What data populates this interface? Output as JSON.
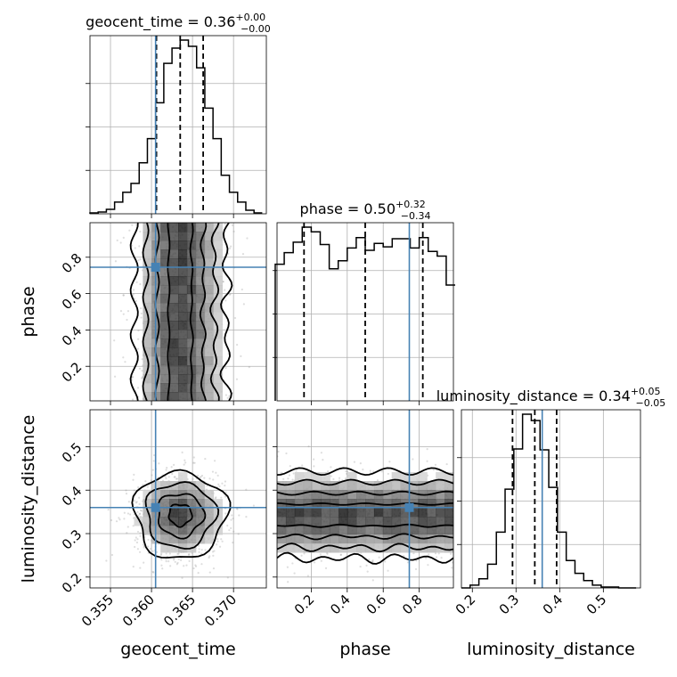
{
  "chart_data": {
    "type": "corner",
    "parameters": [
      "geocent_time",
      "phase",
      "luminosity_distance"
    ],
    "ranges": {
      "geocent_time": [
        0.3525,
        0.374
      ],
      "phase": [
        0.01,
        0.99
      ],
      "luminosity_distance": [
        0.175,
        0.585
      ]
    },
    "truths": {
      "geocent_time": 0.3605,
      "phase": 0.745,
      "luminosity_distance": 0.36
    },
    "grid": true,
    "titles": {
      "geocent_time": {
        "label": "geocent_time = ",
        "median": "0.36",
        "plus": "+0.00",
        "minus": "−0.00"
      },
      "phase": {
        "label": "phase = ",
        "median": "0.50",
        "plus": "+0.32",
        "minus": "−0.34"
      },
      "luminosity_distance": {
        "label": "luminosity_distance = ",
        "median": "0.34",
        "plus": "+0.05",
        "minus": "−0.05"
      }
    },
    "ticks": {
      "geocent_time": [
        "0.355",
        "0.360",
        "0.365",
        "0.370"
      ],
      "phase": [
        "0.2",
        "0.4",
        "0.6",
        "0.8"
      ],
      "luminosity_distance": [
        "0.2",
        "0.3",
        "0.4",
        "0.5"
      ]
    },
    "marginals": [
      {
        "parameter": "geocent_time",
        "quantiles": [
          0.3606,
          0.3635,
          0.3663
        ],
        "bin_edges": [
          0.3525,
          0.3535,
          0.3545,
          0.3555,
          0.3565,
          0.3575,
          0.3585,
          0.3595,
          0.3605,
          0.3615,
          0.3625,
          0.3635,
          0.3645,
          0.3655,
          0.3665,
          0.3675,
          0.3685,
          0.3695,
          0.3705,
          0.3715,
          0.3725,
          0.3735
        ],
        "counts": [
          1,
          2,
          5,
          13,
          24,
          34,
          57,
          84,
          124,
          168,
          185,
          194,
          187,
          163,
          118,
          84,
          43,
          24,
          13,
          4,
          1
        ]
      },
      {
        "parameter": "phase",
        "quantiles": [
          0.16,
          0.5,
          0.82
        ],
        "bin_edges": [
          0.0,
          0.05,
          0.1,
          0.15,
          0.2,
          0.25,
          0.3,
          0.35,
          0.4,
          0.45,
          0.5,
          0.55,
          0.6,
          0.65,
          0.7,
          0.75,
          0.8,
          0.85,
          0.9,
          0.95,
          1.0
        ],
        "counts": [
          118,
          128,
          137,
          150,
          146,
          135,
          114,
          121,
          132,
          141,
          130,
          136,
          133,
          140,
          140,
          132,
          141,
          129,
          125,
          100
        ]
      },
      {
        "parameter": "luminosity_distance",
        "quantiles": [
          0.292,
          0.343,
          0.393
        ],
        "bin_edges": [
          0.175,
          0.195,
          0.215,
          0.235,
          0.255,
          0.275,
          0.295,
          0.315,
          0.335,
          0.355,
          0.375,
          0.395,
          0.415,
          0.435,
          0.455,
          0.475,
          0.495,
          0.515,
          0.535,
          0.555,
          0.575
        ],
        "counts": [
          0,
          3,
          10,
          26,
          61,
          108,
          152,
          190,
          183,
          151,
          110,
          61,
          30,
          16,
          8,
          3,
          1,
          1,
          0,
          0
        ]
      }
    ],
    "joint": [
      {
        "x": "geocent_time",
        "y": "phase",
        "mean": [
          0.3635,
          0.5
        ],
        "std": [
          0.0028,
          0.29
        ],
        "distribution": "gaussian x uniform"
      },
      {
        "x": "geocent_time",
        "y": "luminosity_distance",
        "mean": [
          0.3635,
          0.343
        ],
        "std": [
          0.0028,
          0.05
        ],
        "distribution": "gaussian x gaussian"
      },
      {
        "x": "phase",
        "y": "luminosity_distance",
        "mean": [
          0.5,
          0.343
        ],
        "std": [
          0.29,
          0.05
        ],
        "distribution": "uniform x gaussian"
      }
    ]
  }
}
